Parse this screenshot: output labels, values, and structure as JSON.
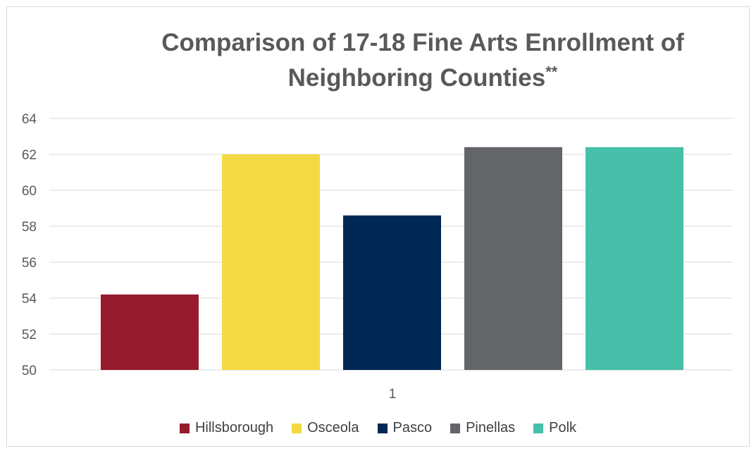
{
  "chart_data": {
    "type": "bar",
    "title": "Comparison of 17-18 Fine Arts Enrollment of Neighboring Counties",
    "title_mark": "**",
    "categories": [
      "1"
    ],
    "series": [
      {
        "name": "Hillsborough",
        "values": [
          54.2
        ],
        "color": "#971b2f"
      },
      {
        "name": "Osceola",
        "values": [
          62.0
        ],
        "color": "#f4d942"
      },
      {
        "name": "Pasco",
        "values": [
          58.6
        ],
        "color": "#002855"
      },
      {
        "name": "Pinellas",
        "values": [
          62.4
        ],
        "color": "#636569"
      },
      {
        "name": "Polk",
        "values": [
          62.4
        ],
        "color": "#47bfa9"
      }
    ],
    "y_ticks": [
      "50",
      "52",
      "54",
      "56",
      "58",
      "60",
      "62",
      "64"
    ],
    "ylim": [
      50,
      64
    ],
    "grid": true,
    "legend": "bottom"
  }
}
